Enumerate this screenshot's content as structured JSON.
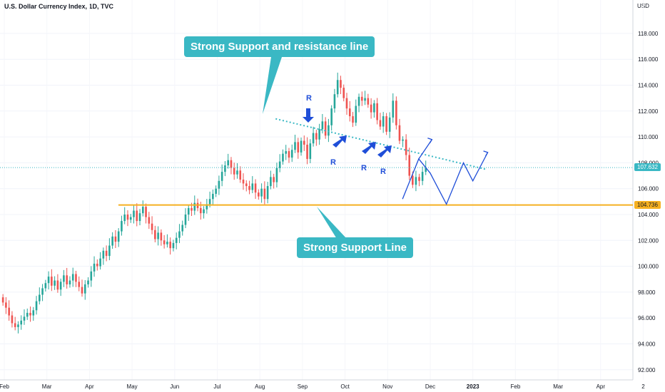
{
  "header": {
    "title": "U.S. Dollar Currency Index, 1D, TVC",
    "currency": "USD"
  },
  "annotations": {
    "resistance_callout": "Strong Support and resistance line",
    "support_callout": "Strong Support Line",
    "r_label": "R"
  },
  "price_tags": {
    "current": "107.632",
    "support": "104.736"
  },
  "colors": {
    "up": "#26a69a",
    "down": "#ef5350",
    "support_line": "#f5b021",
    "trend_line": "#3ab8c4",
    "projection": "#1f4ed8",
    "callout_bg": "#3ab8c4",
    "current_tag": "#3ab8c4"
  },
  "chart_data": {
    "type": "candlestick",
    "title": "U.S. Dollar Currency Index, 1D, TVC",
    "ylabel": "USD",
    "ylim": [
      91,
      120
    ],
    "y_ticks": [
      "92.000",
      "94.000",
      "96.000",
      "98.000",
      "100.000",
      "102.000",
      "104.000",
      "106.000",
      "108.000",
      "110.000",
      "112.000",
      "114.000",
      "116.000",
      "118.000"
    ],
    "x_ticks": [
      "Feb",
      "Mar",
      "Apr",
      "May",
      "Jun",
      "Jul",
      "Aug",
      "Sep",
      "Oct",
      "Nov",
      "Dec",
      "2023",
      "Feb",
      "Mar",
      "Apr",
      "2"
    ],
    "x_tick_month_index": [
      0,
      1,
      2,
      3,
      4,
      5,
      6,
      7,
      8,
      9,
      10,
      11,
      12,
      13,
      14,
      15
    ],
    "closes_by_month": [
      [
        97.2,
        96.8,
        96.2,
        95.6,
        95.3,
        95.5,
        95.8,
        96.1,
        96.4,
        96.2,
        96.6,
        97.3,
        97.8,
        98.3
      ],
      [
        98.7,
        99.2,
        98.5,
        98.9,
        98.2,
        98.8,
        99.3,
        98.6,
        98.9,
        99.4,
        98.8,
        98.4,
        97.9,
        98.6
      ],
      [
        98.9,
        99.6,
        100.2,
        100.0,
        100.6,
        101.2,
        100.8,
        101.6,
        102.3,
        101.9,
        102.7,
        103.5,
        104.0,
        103.6
      ],
      [
        103.8,
        104.3,
        103.5,
        104.1,
        104.6,
        103.8,
        103.3,
        102.8,
        102.1,
        102.6,
        102.0,
        101.7,
        101.9,
        101.4
      ],
      [
        101.8,
        102.2,
        102.7,
        103.2,
        104.0,
        104.5,
        104.3,
        104.9,
        104.5,
        104.1,
        104.4,
        104.8,
        105.2,
        105.6
      ],
      [
        106.0,
        106.6,
        107.3,
        107.8,
        108.2,
        107.6,
        107.1,
        107.4,
        106.7,
        106.4,
        106.2,
        105.9,
        106.4,
        105.7
      ],
      [
        105.4,
        106.0,
        105.2,
        106.2,
        106.9,
        106.5,
        107.6,
        108.1,
        108.7,
        108.9,
        108.4,
        109.0,
        109.6,
        108.8
      ],
      [
        109.7,
        109.4,
        108.3,
        109.5,
        110.3,
        109.8,
        110.6,
        111.2,
        110.1,
        110.9,
        112.2,
        113.3,
        114.4,
        113.8
      ],
      [
        113.0,
        112.2,
        111.6,
        111.1,
        112.4,
        113.1,
        112.8,
        113.0,
        112.5,
        111.9,
        112.6,
        111.3,
        110.8,
        111.6
      ],
      [
        110.4,
        111.5,
        112.8,
        110.9,
        109.7,
        109.8,
        108.6,
        107.0,
        106.3,
        106.9,
        106.6,
        107.3,
        107.6
      ]
    ],
    "support_level": 104.736,
    "current_price": 107.632,
    "trend_line": {
      "from": {
        "month": 6.47,
        "price": 111.4
      },
      "to": {
        "month": 11.4,
        "price": 107.5
      }
    },
    "resistance_touches": 5,
    "projection_path": [
      {
        "month": 9.45,
        "price": 105.2
      },
      {
        "month": 9.83,
        "price": 108.3
      },
      {
        "month": 10.1,
        "price": 107.2
      },
      {
        "month": 10.48,
        "price": 104.8
      },
      {
        "month": 10.88,
        "price": 108.0
      },
      {
        "month": 11.1,
        "price": 106.6
      },
      {
        "month": 11.45,
        "price": 108.8
      }
    ],
    "projection_branch": [
      {
        "month": 9.83,
        "price": 108.3
      },
      {
        "month": 10.14,
        "price": 109.8
      }
    ]
  }
}
